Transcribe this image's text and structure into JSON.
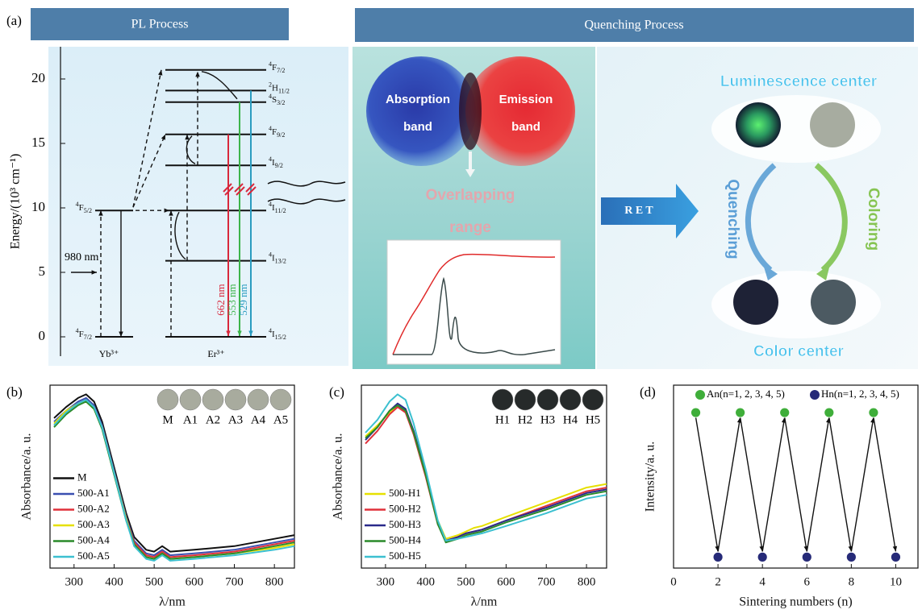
{
  "diagram": {
    "panel_label": "(a)",
    "pl_title": "PL Process",
    "quench_title": "Quenching Process",
    "energy_axis": {
      "label": "Energy/(10³ cm⁻¹)",
      "ylim": [
        -1.5,
        22.5
      ],
      "yticks": [
        0,
        5,
        10,
        15,
        20
      ]
    },
    "yb_levels": [
      {
        "sup": "4",
        "term": "F",
        "sub": "7/2",
        "energy": 0
      },
      {
        "sup": "4",
        "term": "F",
        "sub": "5/2",
        "energy": 9.8
      }
    ],
    "er_levels": [
      {
        "sup": "4",
        "term": "I",
        "sub": "15/2",
        "energy": 0
      },
      {
        "sup": "4",
        "term": "I",
        "sub": "13/2",
        "energy": 5.9
      },
      {
        "sup": "4",
        "term": "I",
        "sub": "11/2",
        "energy": 9.8
      },
      {
        "sup": "4",
        "term": "I",
        "sub": "9/2",
        "energy": 13.3
      },
      {
        "sup": "4",
        "term": "F",
        "sub": "9/2",
        "energy": 15.7
      },
      {
        "sup": "4",
        "term": "S",
        "sub": "3/2",
        "energy": 18.2
      },
      {
        "sup": "2",
        "term": "H",
        "sub": "11/2",
        "energy": 19.1
      },
      {
        "sup": "4",
        "term": "F",
        "sub": "7/2",
        "energy": 20.7
      }
    ],
    "ions": [
      "Yb³⁺",
      "Er³⁺"
    ],
    "excitation": "980 nm",
    "emissions": [
      {
        "label": "662 nm",
        "color": "#d8283c"
      },
      {
        "label": "553 nm",
        "color": "#3cb44a"
      },
      {
        "label": "529 nm",
        "color": "#2a9cc0"
      }
    ],
    "absorption": [
      "Absorption",
      "band"
    ],
    "emission_band": [
      "Emission",
      "band"
    ],
    "overlap": [
      "Overlapping",
      "range"
    ],
    "ret": "R E T",
    "luminescence_center": "Luminescence center",
    "color_center": "Color center",
    "quenching": "Quenching",
    "coloring": "Coloring"
  },
  "chart_data": [
    {
      "type": "line",
      "panel_label": "(b)",
      "xlabel": "λ/nm",
      "ylabel": "Absorbance/a. u.",
      "xlim": [
        240,
        850
      ],
      "xticks": [
        300,
        400,
        500,
        600,
        700,
        800
      ],
      "ylim": [
        0,
        1
      ],
      "legend": "lower left",
      "inset_labels": [
        "M",
        "A1",
        "A2",
        "A3",
        "A4",
        "A5"
      ],
      "x": [
        250,
        280,
        310,
        330,
        350,
        370,
        400,
        430,
        450,
        480,
        500,
        520,
        540,
        600,
        700,
        800,
        850
      ],
      "series": [
        {
          "name": "M",
          "color": "#111111",
          "values": [
            0.82,
            0.88,
            0.93,
            0.95,
            0.91,
            0.8,
            0.55,
            0.3,
            0.17,
            0.1,
            0.09,
            0.12,
            0.09,
            0.1,
            0.12,
            0.16,
            0.18
          ]
        },
        {
          "name": "500-A1",
          "color": "#3a4fb0",
          "values": [
            0.8,
            0.86,
            0.91,
            0.93,
            0.89,
            0.78,
            0.53,
            0.28,
            0.15,
            0.08,
            0.07,
            0.1,
            0.07,
            0.08,
            0.1,
            0.14,
            0.16
          ]
        },
        {
          "name": "500-A2",
          "color": "#e0303a",
          "values": [
            0.78,
            0.85,
            0.9,
            0.92,
            0.88,
            0.77,
            0.52,
            0.27,
            0.14,
            0.07,
            0.06,
            0.09,
            0.06,
            0.07,
            0.09,
            0.13,
            0.15
          ]
        },
        {
          "name": "500-A3",
          "color": "#e6e000",
          "values": [
            0.79,
            0.86,
            0.9,
            0.91,
            0.87,
            0.77,
            0.52,
            0.27,
            0.13,
            0.06,
            0.05,
            0.08,
            0.05,
            0.06,
            0.08,
            0.11,
            0.13
          ]
        },
        {
          "name": "500-A4",
          "color": "#2a8a2a",
          "values": [
            0.77,
            0.84,
            0.89,
            0.91,
            0.87,
            0.76,
            0.51,
            0.26,
            0.13,
            0.06,
            0.05,
            0.08,
            0.05,
            0.06,
            0.08,
            0.12,
            0.14
          ]
        },
        {
          "name": "500-A5",
          "color": "#3cc0d0",
          "values": [
            0.78,
            0.85,
            0.9,
            0.92,
            0.88,
            0.77,
            0.52,
            0.26,
            0.12,
            0.05,
            0.04,
            0.07,
            0.04,
            0.05,
            0.07,
            0.1,
            0.12
          ]
        }
      ]
    },
    {
      "type": "line",
      "panel_label": "(c)",
      "xlabel": "λ/nm",
      "ylabel": "Absorbance/a. u.",
      "xlim": [
        240,
        850
      ],
      "xticks": [
        300,
        400,
        500,
        600,
        700,
        800
      ],
      "ylim": [
        0,
        1
      ],
      "legend": "lower left",
      "inset_labels": [
        "H1",
        "H2",
        "H3",
        "H4",
        "H5"
      ],
      "x": [
        250,
        280,
        310,
        330,
        350,
        370,
        400,
        430,
        450,
        480,
        500,
        520,
        540,
        600,
        700,
        800,
        850
      ],
      "series": [
        {
          "name": "500-H1",
          "color": "#e6e000",
          "values": [
            0.72,
            0.78,
            0.85,
            0.88,
            0.86,
            0.74,
            0.52,
            0.26,
            0.16,
            0.18,
            0.2,
            0.22,
            0.23,
            0.28,
            0.36,
            0.44,
            0.46
          ]
        },
        {
          "name": "500-H2",
          "color": "#e0303a",
          "values": [
            0.68,
            0.75,
            0.84,
            0.88,
            0.85,
            0.73,
            0.5,
            0.24,
            0.15,
            0.17,
            0.19,
            0.2,
            0.21,
            0.26,
            0.34,
            0.42,
            0.44
          ]
        },
        {
          "name": "500-H3",
          "color": "#2a2a8a",
          "values": [
            0.7,
            0.77,
            0.86,
            0.9,
            0.87,
            0.75,
            0.52,
            0.25,
            0.15,
            0.17,
            0.19,
            0.2,
            0.21,
            0.26,
            0.33,
            0.41,
            0.43
          ]
        },
        {
          "name": "500-H4",
          "color": "#2a8a2a",
          "values": [
            0.71,
            0.77,
            0.86,
            0.89,
            0.86,
            0.74,
            0.51,
            0.24,
            0.14,
            0.16,
            0.18,
            0.19,
            0.2,
            0.25,
            0.32,
            0.4,
            0.42
          ]
        },
        {
          "name": "500-H5",
          "color": "#3cc0d0",
          "values": [
            0.74,
            0.81,
            0.91,
            0.95,
            0.92,
            0.79,
            0.54,
            0.26,
            0.15,
            0.16,
            0.17,
            0.18,
            0.19,
            0.23,
            0.3,
            0.38,
            0.4
          ]
        }
      ]
    },
    {
      "type": "scatter",
      "panel_label": "(d)",
      "xlabel": "Sintering numbers (n)",
      "ylabel": "Intensity/a. u.",
      "xlim": [
        0,
        11
      ],
      "xticks": [
        0,
        2,
        4,
        6,
        8,
        10
      ],
      "ylim": [
        0,
        1
      ],
      "legend": "top",
      "series": [
        {
          "name": "An(n=1, 2, 3, 4, 5)",
          "color": "#3fae3a",
          "x": [
            1,
            3,
            5,
            7,
            9
          ],
          "values": [
            0.85,
            0.85,
            0.85,
            0.85,
            0.85
          ]
        },
        {
          "name": "Hn(n=1, 2, 3, 4, 5)",
          "color": "#262a78",
          "x": [
            2,
            4,
            6,
            8,
            10
          ],
          "values": [
            0.06,
            0.06,
            0.06,
            0.06,
            0.06
          ]
        }
      ]
    }
  ]
}
